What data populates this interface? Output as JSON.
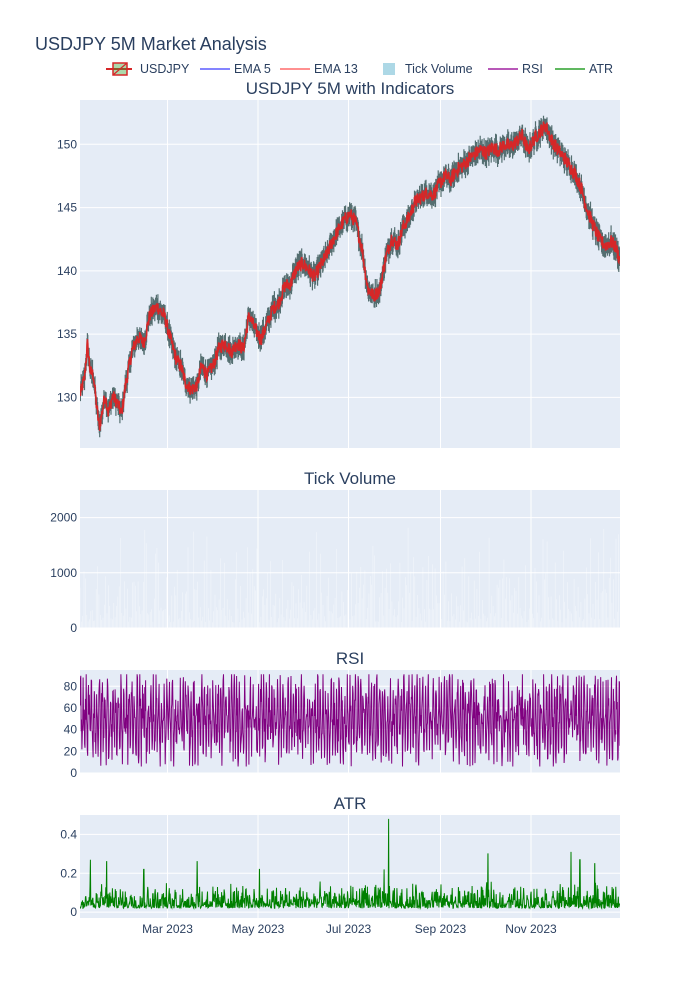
{
  "title": "USDJPY 5M Market Analysis",
  "legend": [
    {
      "label": "USDJPY",
      "kind": "candle",
      "color": "#d62728",
      "fill": "#2ca02c"
    },
    {
      "label": "EMA 5",
      "kind": "line",
      "color": "#5b5bff"
    },
    {
      "label": "EMA 13",
      "kind": "line",
      "color": "#ff6b6b"
    },
    {
      "label": "Tick Volume",
      "kind": "bar",
      "color": "#add8e6"
    },
    {
      "label": "RSI",
      "kind": "line",
      "color": "#a020a0"
    },
    {
      "label": "ATR",
      "kind": "line",
      "color": "#2ca02c"
    }
  ],
  "colors": {
    "plot_bg": "#e5ecf6",
    "grid": "#ffffff",
    "text": "#2a3f5f",
    "price": "#d62728",
    "ema5": "#5b5bff",
    "rsi": "#800080",
    "atr": "#008000",
    "volume": "#d8e6f1"
  },
  "x_axis": {
    "range": [
      "2023-01-01",
      "2023-12-31"
    ],
    "ticks": [
      {
        "date": "2023-03-01",
        "label": "Mar 2023"
      },
      {
        "date": "2023-05-01",
        "label": "May 2023"
      },
      {
        "date": "2023-07-01",
        "label": "Jul 2023"
      },
      {
        "date": "2023-09-01",
        "label": "Sep 2023"
      },
      {
        "date": "2023-11-01",
        "label": "Nov 2023"
      }
    ]
  },
  "chart_data": [
    {
      "id": "price",
      "type": "line",
      "title": "USDJPY 5M with Indicators",
      "ylim": [
        126,
        153.5
      ],
      "yticks": [
        130,
        135,
        140,
        145,
        150
      ],
      "series": [
        {
          "name": "USDJPY",
          "x": [
            "2023-01-01",
            "2023-01-04",
            "2023-01-06",
            "2023-01-08",
            "2023-01-10",
            "2023-01-12",
            "2023-01-14",
            "2023-01-16",
            "2023-01-18",
            "2023-01-20",
            "2023-01-23",
            "2023-01-26",
            "2023-01-29",
            "2023-02-01",
            "2023-02-05",
            "2023-02-09",
            "2023-02-13",
            "2023-02-17",
            "2023-02-22",
            "2023-02-27",
            "2023-03-03",
            "2023-03-07",
            "2023-03-10",
            "2023-03-13",
            "2023-03-17",
            "2023-03-21",
            "2023-03-24",
            "2023-03-28",
            "2023-04-01",
            "2023-04-05",
            "2023-04-09",
            "2023-04-13",
            "2023-04-17",
            "2023-04-21",
            "2023-04-25",
            "2023-04-29",
            "2023-05-03",
            "2023-05-07",
            "2023-05-11",
            "2023-05-15",
            "2023-05-19",
            "2023-05-23",
            "2023-05-27",
            "2023-05-31",
            "2023-06-04",
            "2023-06-08",
            "2023-06-12",
            "2023-06-16",
            "2023-06-20",
            "2023-06-24",
            "2023-06-28",
            "2023-07-02",
            "2023-07-06",
            "2023-07-10",
            "2023-07-14",
            "2023-07-18",
            "2023-07-22",
            "2023-07-26",
            "2023-07-30",
            "2023-08-03",
            "2023-08-07",
            "2023-08-11",
            "2023-08-15",
            "2023-08-19",
            "2023-08-23",
            "2023-08-27",
            "2023-08-31",
            "2023-09-04",
            "2023-09-08",
            "2023-09-12",
            "2023-09-16",
            "2023-09-20",
            "2023-09-24",
            "2023-09-28",
            "2023-10-02",
            "2023-10-06",
            "2023-10-10",
            "2023-10-14",
            "2023-10-18",
            "2023-10-22",
            "2023-10-26",
            "2023-10-30",
            "2023-11-03",
            "2023-11-07",
            "2023-11-11",
            "2023-11-15",
            "2023-11-19",
            "2023-11-23",
            "2023-11-27",
            "2023-12-01",
            "2023-12-05",
            "2023-12-09",
            "2023-12-13",
            "2023-12-17",
            "2023-12-21",
            "2023-12-25",
            "2023-12-28",
            "2023-12-31"
          ],
          "values": [
            130.2,
            131.5,
            134.2,
            132.0,
            131.8,
            129.5,
            127.6,
            128.9,
            130.2,
            128.8,
            130.1,
            129.6,
            128.7,
            131.2,
            133.6,
            134.8,
            134.3,
            136.5,
            137.2,
            136.4,
            134.6,
            133.0,
            132.5,
            131.2,
            130.6,
            131.0,
            132.5,
            131.8,
            132.6,
            134.0,
            134.3,
            133.6,
            134.3,
            133.8,
            136.5,
            135.4,
            134.6,
            135.8,
            137.0,
            137.5,
            138.8,
            139.0,
            140.2,
            140.6,
            140.1,
            139.5,
            140.4,
            141.2,
            142.3,
            143.2,
            144.0,
            144.5,
            143.8,
            141.8,
            138.6,
            138.0,
            138.5,
            141.0,
            142.6,
            142.0,
            143.5,
            144.3,
            145.5,
            145.8,
            146.2,
            146.0,
            146.8,
            147.5,
            147.2,
            148.0,
            148.3,
            148.8,
            149.2,
            149.6,
            149.3,
            149.8,
            149.5,
            150.0,
            149.8,
            150.2,
            150.7,
            149.5,
            150.4,
            151.0,
            151.5,
            150.3,
            149.6,
            149.0,
            148.3,
            147.6,
            146.5,
            144.8,
            143.6,
            142.5,
            142.0,
            142.3,
            141.9,
            140.8
          ]
        }
      ]
    },
    {
      "id": "volume",
      "type": "bar",
      "title": "Tick Volume",
      "ylim": [
        0,
        2500
      ],
      "yticks": [
        0,
        1000,
        2000
      ],
      "series": [
        {
          "name": "Tick Volume",
          "peak_values": [
            2000,
            1900,
            1800,
            1700,
            1600,
            1500,
            1400,
            1300,
            1200,
            1100,
            1000,
            900,
            800,
            700,
            600,
            500,
            400,
            300,
            200,
            100
          ]
        }
      ]
    },
    {
      "id": "rsi",
      "type": "line",
      "title": "RSI",
      "ylim": [
        0,
        95
      ],
      "yticks": [
        0,
        20,
        40,
        60,
        80
      ],
      "series": [
        {
          "name": "RSI",
          "typical_range": [
            10,
            90
          ]
        }
      ]
    },
    {
      "id": "atr",
      "type": "line",
      "title": "ATR",
      "ylim": [
        -0.03,
        0.5
      ],
      "yticks": [
        0,
        0.2,
        0.4
      ],
      "series": [
        {
          "name": "ATR",
          "typical_range": [
            0.01,
            0.15
          ],
          "spikes": [
            {
              "x": "2023-01-08",
              "y": 0.27
            },
            {
              "x": "2023-01-19",
              "y": 0.26
            },
            {
              "x": "2023-02-13",
              "y": 0.22
            },
            {
              "x": "2023-03-21",
              "y": 0.26
            },
            {
              "x": "2023-05-02",
              "y": 0.22
            },
            {
              "x": "2023-07-28",
              "y": 0.48
            },
            {
              "x": "2023-07-25",
              "y": 0.22
            },
            {
              "x": "2023-10-03",
              "y": 0.3
            },
            {
              "x": "2023-11-28",
              "y": 0.31
            },
            {
              "x": "2023-12-04",
              "y": 0.27
            },
            {
              "x": "2023-12-14",
              "y": 0.25
            }
          ]
        }
      ]
    }
  ]
}
